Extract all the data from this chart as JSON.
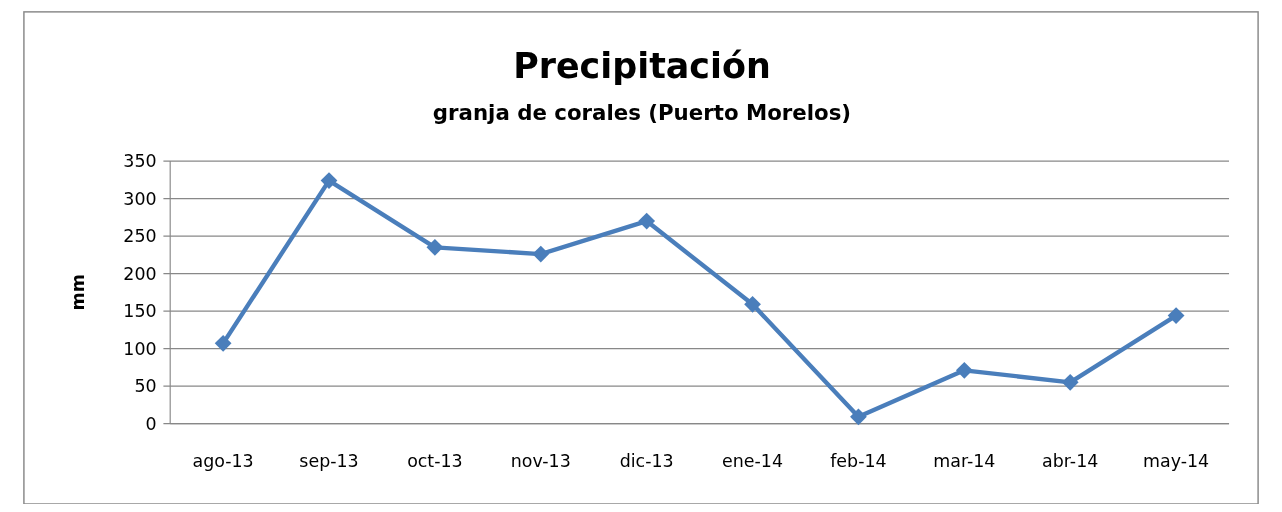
{
  "chart_data": {
    "type": "line",
    "title": "Precipitación",
    "subtitle": "granja de corales (Puerto Morelos)",
    "ylabel": "mm",
    "categories": [
      "ago-13",
      "sep-13",
      "oct-13",
      "nov-13",
      "dic-13",
      "ene-14",
      "feb-14",
      "mar-14",
      "abr-14",
      "may-14"
    ],
    "series": [
      {
        "color": "#4a7ebb",
        "values": [
          107,
          324,
          235,
          226,
          270,
          159,
          9,
          71,
          55,
          144
        ]
      }
    ],
    "ylim": [
      0,
      350
    ],
    "yticks": [
      0,
      50,
      100,
      150,
      200,
      250,
      300,
      350
    ],
    "grid": "y",
    "marker": "diamond",
    "line_style": "solid"
  }
}
